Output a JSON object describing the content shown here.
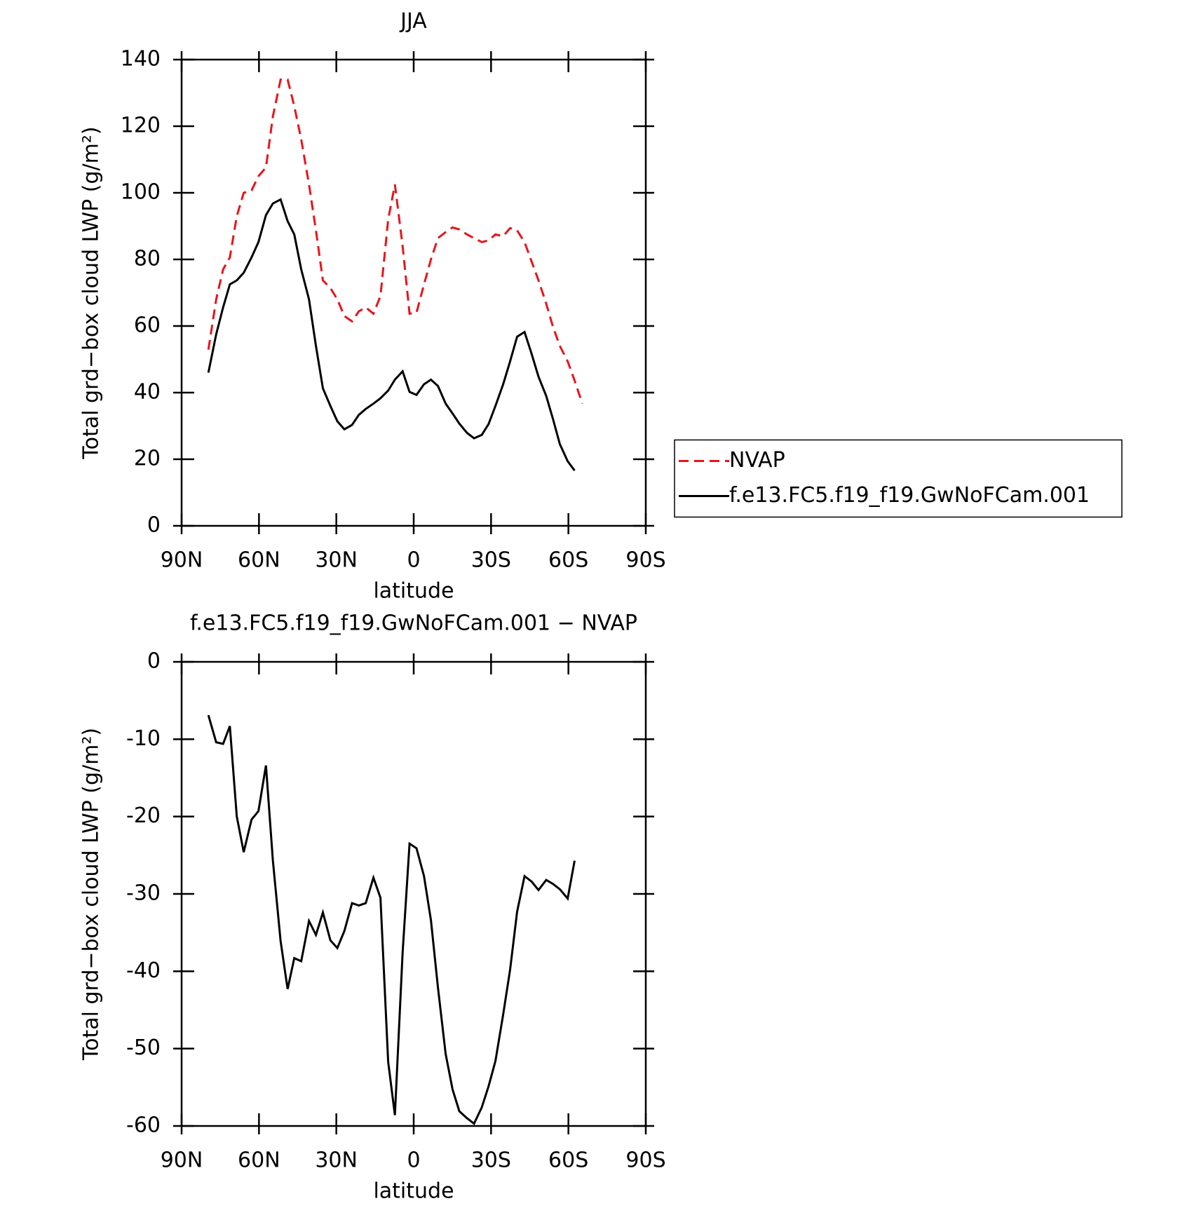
{
  "chart_data": [
    {
      "type": "line",
      "title": "JJA",
      "x_label": "latitude",
      "y_label": "Total grd−box cloud LWP (g/m²)",
      "x": [
        79.6,
        76.6,
        73.9,
        71.3,
        68.6,
        65.9,
        62.9,
        60.2,
        57.3,
        54.6,
        51.6,
        48.9,
        46.3,
        43.6,
        40.6,
        37.9,
        35.2,
        32.3,
        29.6,
        26.9,
        23.9,
        21.3,
        18.6,
        15.6,
        12.9,
        9.9,
        7.3,
        4.3,
        1.6,
        -1.1,
        -4,
        -6.7,
        -9.4,
        -12.4,
        -15.1,
        -17.7,
        -20.7,
        -23.4,
        -26.4,
        -29,
        -31.7,
        -34.7,
        -37.4,
        -40.1,
        -43,
        -45.7,
        -48.4,
        -51.4,
        -54,
        -56.7,
        -59.7,
        -62.4,
        -65.4
      ],
      "series": [
        {
          "name": "NVAP",
          "color": "#e8141c",
          "linestyle": "dashed",
          "values": [
            52.9,
            68,
            77,
            80.6,
            93,
            100,
            100.7,
            105,
            107.6,
            123,
            134,
            134,
            126,
            116,
            102.5,
            88.7,
            73.7,
            71.4,
            68,
            63,
            61.4,
            64.4,
            65.6,
            63.7,
            69,
            92,
            102.5,
            84,
            63.7,
            64,
            72.5,
            80,
            86.4,
            88.2,
            89.6,
            89,
            87.5,
            86.4,
            85.2,
            85.7,
            87.5,
            87,
            89.4,
            88.7,
            85.2,
            79.4,
            73.7,
            66.7,
            59.8,
            54,
            49.4,
            43.6,
            36.7
          ]
        },
        {
          "name": "f.e13.FC5.f19_f19.GwNoFCam.001",
          "color": "#000000",
          "linestyle": "solid",
          "values": [
            46,
            57.5,
            65.6,
            72.5,
            73.7,
            76,
            80.6,
            85.2,
            93.3,
            96.8,
            98,
            91.5,
            87.5,
            77,
            68,
            54,
            41.3,
            36,
            31.4,
            29,
            30.3,
            33.3,
            35.1,
            36.7,
            38.3,
            40.6,
            43.9,
            46.4,
            40.2,
            39.3,
            42.5,
            43.9,
            42,
            36.7,
            33.7,
            30.7,
            27.9,
            26.3,
            27.3,
            30.5,
            36,
            42.5,
            49.4,
            56.8,
            58.2,
            51.7,
            44.8,
            39,
            32.1,
            24.5,
            19.4,
            16.6,
            null
          ]
        }
      ],
      "xlim": [
        90,
        -90
      ],
      "xticks": [
        {
          "value": 90,
          "label": "90N"
        },
        {
          "value": 60,
          "label": "60N"
        },
        {
          "value": 30,
          "label": "30N"
        },
        0,
        {
          "value": -30,
          "label": "30S"
        },
        {
          "value": -60,
          "label": "60S"
        },
        {
          "value": -90,
          "label": "90S"
        }
      ],
      "ylim": [
        0,
        140
      ],
      "yticks": [
        0,
        20,
        40,
        60,
        80,
        100,
        120,
        140
      ],
      "legend": "right"
    },
    {
      "type": "line",
      "title": "f.e13.FC5.f19_f19.GwNoFCam.001 − NVAP",
      "x_label": "latitude",
      "y_label": "Total grd−box cloud LWP (g/m²)",
      "x": [
        79.6,
        76.6,
        73.9,
        71.3,
        68.6,
        65.9,
        62.9,
        60.2,
        57.3,
        54.6,
        51.6,
        48.9,
        46.3,
        43.6,
        40.6,
        37.9,
        35.2,
        32.3,
        29.6,
        26.9,
        23.9,
        21.3,
        18.6,
        15.6,
        12.9,
        9.9,
        7.3,
        4.3,
        1.6,
        -1.1,
        -4,
        -6.7,
        -9.4,
        -12.4,
        -15.1,
        -17.7,
        -20.7,
        -23.4,
        -26.4,
        -29,
        -31.7,
        -34.7,
        -37.4,
        -40.1,
        -43,
        -45.7,
        -48.4,
        -51.4,
        -54,
        -56.7,
        -59.7,
        -62.4,
        -65.4
      ],
      "series": [
        {
          "color": "#000000",
          "linestyle": "solid",
          "values": [
            -6.9,
            -10.4,
            -10.6,
            -8.3,
            -20,
            -24.6,
            -20.4,
            -19.3,
            -13.4,
            -25.7,
            -36.1,
            -42.3,
            -38.3,
            -38.7,
            -33.5,
            -35.3,
            -32.4,
            -36,
            -37,
            -34.8,
            -31.2,
            -31.5,
            -31.2,
            -27.9,
            -30.5,
            -51.7,
            -58.6,
            -37.6,
            -23.5,
            -24.1,
            -27.7,
            -33.4,
            -42.1,
            -50.7,
            -55.3,
            -58.1,
            -59,
            -59.7,
            -57.6,
            -54.9,
            -51.6,
            -45.6,
            -39.8,
            -32.3,
            -27.7,
            -28.4,
            -29.5,
            -28.2,
            -28.7,
            -29.4,
            -30.6,
            -25.7,
            null
          ]
        }
      ],
      "xlim": [
        90,
        -90
      ],
      "xticks": [
        {
          "value": 90,
          "label": "90N"
        },
        {
          "value": 60,
          "label": "60N"
        },
        {
          "value": 30,
          "label": "30N"
        },
        0,
        {
          "value": -30,
          "label": "30S"
        },
        {
          "value": -60,
          "label": "60S"
        },
        {
          "value": -90,
          "label": "90S"
        }
      ],
      "ylim": [
        -60,
        0
      ],
      "yticks": [
        -60,
        -50,
        -40,
        -30,
        -20,
        -10,
        0
      ]
    }
  ]
}
